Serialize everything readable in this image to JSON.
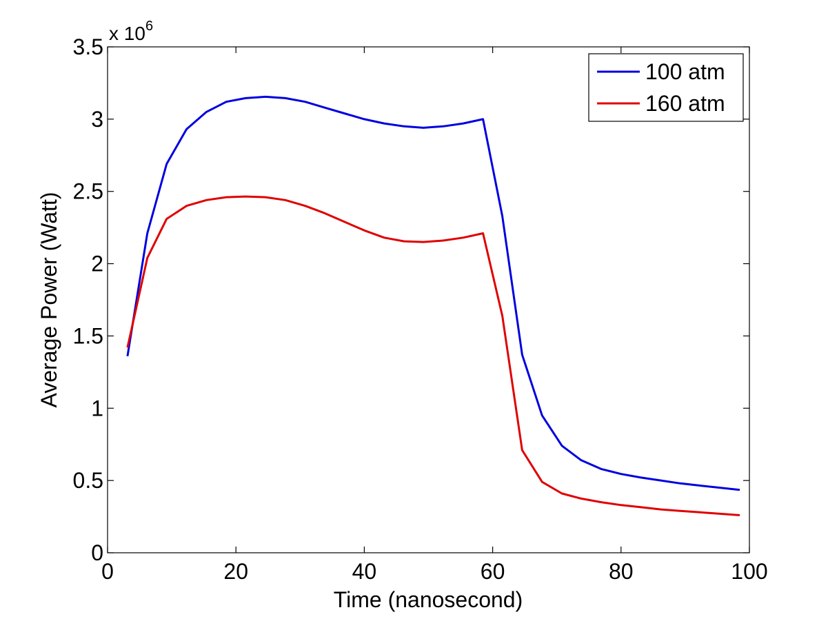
{
  "chart_data": {
    "type": "line",
    "title": "",
    "xlabel": "Time (nanosecond)",
    "ylabel": "Average Power (Watt)",
    "y_scale_label_base": "x 10",
    "y_scale_label_exp": "6",
    "xlim": [
      0,
      100
    ],
    "ylim": [
      0,
      3.5
    ],
    "x_ticks": [
      0,
      20,
      40,
      60,
      80,
      100
    ],
    "x_tick_labels": [
      "0",
      "20",
      "40",
      "60",
      "80",
      "100"
    ],
    "y_ticks": [
      0,
      0.5,
      1,
      1.5,
      2,
      2.5,
      3,
      3.5
    ],
    "y_tick_labels": [
      "0",
      "0.5",
      "1",
      "1.5",
      "2",
      "2.5",
      "3",
      "3.5"
    ],
    "grid": false,
    "legend_position": "top-right",
    "x": [
      3.1,
      6.2,
      9.2,
      12.3,
      15.4,
      18.5,
      21.5,
      24.6,
      27.7,
      30.8,
      33.8,
      36.9,
      40.0,
      43.1,
      46.2,
      49.2,
      52.3,
      55.4,
      58.5,
      61.5,
      64.6,
      67.7,
      70.8,
      73.8,
      76.9,
      80.0,
      83.1,
      86.2,
      89.2,
      92.3,
      95.4,
      98.5
    ],
    "series": [
      {
        "name": "100 atm",
        "color": "#0000e0",
        "values": [
          1.36,
          2.21,
          2.69,
          2.93,
          3.05,
          3.12,
          3.145,
          3.155,
          3.145,
          3.12,
          3.08,
          3.04,
          3.0,
          2.97,
          2.95,
          2.94,
          2.95,
          2.97,
          3.0,
          2.33,
          1.37,
          0.95,
          0.74,
          0.64,
          0.58,
          0.545,
          0.52,
          0.5,
          0.48,
          0.465,
          0.45,
          0.435
        ]
      },
      {
        "name": "160 atm",
        "color": "#e00000",
        "values": [
          1.42,
          2.04,
          2.31,
          2.4,
          2.44,
          2.46,
          2.465,
          2.46,
          2.44,
          2.4,
          2.35,
          2.29,
          2.23,
          2.18,
          2.155,
          2.15,
          2.16,
          2.18,
          2.21,
          1.64,
          0.71,
          0.49,
          0.41,
          0.375,
          0.35,
          0.33,
          0.315,
          0.3,
          0.29,
          0.28,
          0.27,
          0.26
        ]
      }
    ]
  }
}
